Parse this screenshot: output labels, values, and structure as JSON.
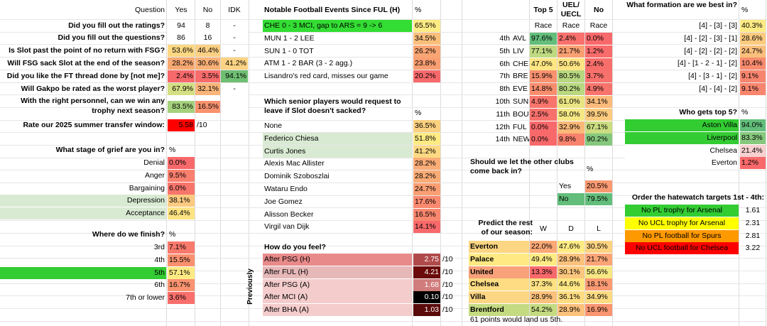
{
  "survey": {
    "header": {
      "question": "Question",
      "yes": "Yes",
      "no": "No",
      "idk": "IDK"
    },
    "rows": [
      {
        "q": "Did you fill out the ratings?",
        "yes": "94",
        "no": "8",
        "idk": "-",
        "yes_c": "#ffffff",
        "no_c": "#ffffff",
        "idk_c": "#ffffff"
      },
      {
        "q": "Did you fill out the questions?",
        "yes": "86",
        "no": "16",
        "idk": "-",
        "yes_c": "#ffffff",
        "no_c": "#ffffff",
        "idk_c": "#ffffff"
      },
      {
        "q": "Is Slot past the point of no return with FSG?",
        "yes": "53.6%",
        "no": "46.4%",
        "idk": "-",
        "yes_c": "#fdd883",
        "no_c": "#fcd084",
        "idk_c": "#ffffff"
      },
      {
        "q": "Will FSG sack Slot at the end of the season?",
        "yes": "28.2%",
        "no": "30.6%",
        "idk": "41.2%",
        "yes_c": "#f8a872",
        "no_c": "#f9b076",
        "idk_c": "#fdd383"
      },
      {
        "q": "Did you like the FT thread done by [not me]?",
        "yes": "2.4%",
        "no": "3.5%",
        "idk": "94.1%",
        "yes_c": "#f8696b",
        "no_c": "#f86c6b",
        "idk_c": "#6fbf73"
      },
      {
        "q": "Will Gakpo be rated as the worst player?",
        "yes": "67.9%",
        "no": "32.1%",
        "idk": "-",
        "yes_c": "#d3df82",
        "no_c": "#f9b57a",
        "idk_c": "#ffffff"
      },
      {
        "q": "With the right personnel, can we win any trophy next season?",
        "yes": "83.5%",
        "no": "16.5%",
        "idk": "",
        "yes_c": "#a5d17d",
        "no_c": "#f9926e",
        "idk_c": "#ffffff"
      }
    ],
    "transfer": {
      "label": "Rate our 2025 summer transfer window:",
      "value": "5.58",
      "unit": "/10"
    }
  },
  "grief": {
    "title": "What stage of grief are you in?",
    "pct": "%",
    "rows": [
      {
        "label": "Denial",
        "value": "0.0%",
        "c": "#f8696b"
      },
      {
        "label": "Anger",
        "value": "9.5%",
        "c": "#f97f6e"
      },
      {
        "label": "Bargaining",
        "value": "6.0%",
        "c": "#f8756c"
      },
      {
        "label": "Depression",
        "value": "38.1%",
        "c": "#fcca81"
      },
      {
        "label": "Acceptance",
        "value": "46.4%",
        "c": "#fee383"
      }
    ]
  },
  "finish": {
    "title": "Where do we finish?",
    "pct": "%",
    "rows": [
      {
        "label": "3rd",
        "value": "7.1%",
        "c": "#f8796d"
      },
      {
        "label": "4th",
        "value": "15.5%",
        "c": "#f9906f"
      },
      {
        "label": "5th",
        "value": "57.1%",
        "c": "#ffeb84"
      },
      {
        "label": "6th",
        "value": "16.7%",
        "c": "#f99370"
      },
      {
        "label": "7th or lower",
        "value": "3.6%",
        "c": "#f86f6c"
      }
    ]
  },
  "events": {
    "title": "Notable Football Events Since FUL (H)",
    "pct": "%",
    "rows": [
      {
        "label": "CHE 0 - 3 MCI, gap to ARS = 9 -> 6",
        "value": "65.5%",
        "c": "#ffeb84"
      },
      {
        "label": "MUN 1 - 2 LEE",
        "value": "34.5%",
        "c": "#fbbf7c"
      },
      {
        "label": "SUN 1 - 0 TOT",
        "value": "26.2%",
        "c": "#f9a574"
      },
      {
        "label": "ATM 1 - 2 BAR (3 - 2 agg.)",
        "value": "23.8%",
        "c": "#f99e72"
      },
      {
        "label": "Lisandro's red card, misses our game",
        "value": "20.2%",
        "c": "#f8696b"
      }
    ]
  },
  "senior": {
    "title": "Which senior players would request to leave if Slot doesn't sacked?",
    "pct": "%",
    "rows": [
      {
        "label": "None",
        "value": "36.5%",
        "c": "#fbd07f"
      },
      {
        "label": "Federico Chiesa",
        "value": "51.8%",
        "c": "#ffeb84"
      },
      {
        "label": "Curtis Jones",
        "value": "41.2%",
        "c": "#fdd983"
      },
      {
        "label": "Alexis Mac Allister",
        "value": "28.2%",
        "c": "#faac77"
      },
      {
        "label": "Dominik Szoboszlai",
        "value": "28.2%",
        "c": "#faac77"
      },
      {
        "label": "Wataru Endo",
        "value": "24.7%",
        "c": "#f99f73"
      },
      {
        "label": "Joe Gomez",
        "value": "17.6%",
        "c": "#f98a6f"
      },
      {
        "label": "Alisson Becker",
        "value": "16.5%",
        "c": "#f8876e"
      },
      {
        "label": "Virgil van Dijk",
        "value": "14.1%",
        "c": "#f8696b"
      }
    ]
  },
  "feel": {
    "title": "How do you feel?",
    "side": "Previously",
    "unit": "/10",
    "rows": [
      {
        "label": "After PSG (H)",
        "value": "2.75",
        "c": "#b04a4a"
      },
      {
        "label": "After FUL (H)",
        "value": "4.21",
        "c": "#6a0a0a"
      },
      {
        "label": "After PSG (A)",
        "value": "1.68",
        "c": "#d07c7c"
      },
      {
        "label": "After MCI (A)",
        "value": "0.10",
        "c": "#000000"
      },
      {
        "label": "After BHA (A)",
        "value": "1.03",
        "c": "#5a0a0a"
      }
    ]
  },
  "race": {
    "headers": {
      "top5": "Top 5",
      "uel": "UEL/ UECL",
      "no": "No",
      "race": "Race"
    },
    "rows": [
      {
        "pos": "4th",
        "team": "AVL",
        "top5": "97.6%",
        "uel": "2.4%",
        "no": "0.0%",
        "c1": "#63be7b",
        "c2": "#f8716c",
        "c3": "#f8696b"
      },
      {
        "pos": "5th",
        "team": "LIV",
        "top5": "77.1%",
        "uel": "21.7%",
        "no": "1.2%",
        "c1": "#c0da81",
        "c2": "#f9a072",
        "c3": "#f86c6b"
      },
      {
        "pos": "6th",
        "team": "CHE",
        "top5": "47.0%",
        "uel": "50.6%",
        "no": "2.4%",
        "c1": "#fee683",
        "c2": "#ffe483",
        "c3": "#f86e6b"
      },
      {
        "pos": "7th",
        "team": "BRE",
        "top5": "15.9%",
        "uel": "80.5%",
        "no": "3.7%",
        "c1": "#f99170",
        "c2": "#b7d780",
        "c3": "#f8716c"
      },
      {
        "pos": "8th",
        "team": "EVE",
        "top5": "14.8%",
        "uel": "80.2%",
        "no": "4.9%",
        "c1": "#f98e6f",
        "c2": "#b9d880",
        "c3": "#f8746c"
      },
      {
        "pos": "10th",
        "team": "SUN",
        "top5": "4.9%",
        "uel": "61.0%",
        "no": "34.1%",
        "c1": "#f8756c",
        "c2": "#eae583",
        "c3": "#fbbb7b"
      },
      {
        "pos": "11th",
        "team": "BOU",
        "top5": "2.5%",
        "uel": "58.0%",
        "no": "39.5%",
        "c1": "#f8706c",
        "c2": "#f5e884",
        "c3": "#fccb7f"
      },
      {
        "pos": "12th",
        "team": "FUL",
        "top5": "0.0%",
        "uel": "32.9%",
        "no": "67.1%",
        "c1": "#f8696b",
        "c2": "#fbb979",
        "c3": "#cbdc81"
      },
      {
        "pos": "14th",
        "team": "NEW",
        "top5": "0.0%",
        "uel": "9.8%",
        "no": "90.2%",
        "c1": "#f8696b",
        "c2": "#f9826e",
        "c3": "#85c87d"
      }
    ]
  },
  "comeback": {
    "title": "Should we let the other clubs come back in?",
    "pct": "%",
    "rows": [
      {
        "label": "Yes",
        "value": "20.5%",
        "c": "#f99a72",
        "lc": "#ffffff"
      },
      {
        "label": "No",
        "value": "79.5%",
        "c": "#63be7b",
        "lc": "#63be7b"
      }
    ]
  },
  "predict": {
    "title": "Predict the rest of our season:",
    "w": "W",
    "d": "D",
    "l": "L",
    "rows": [
      {
        "team": "Everton",
        "w": "22.0%",
        "d": "47.6%",
        "l": "30.5%",
        "tc": "#fdd683",
        "c1": "#fca977",
        "c2": "#ffeb84",
        "c3": "#fdd382"
      },
      {
        "team": "Palace",
        "w": "49.4%",
        "d": "28.9%",
        "l": "21.7%",
        "tc": "#fee983",
        "c1": "#ffeb84",
        "c2": "#fcc27d",
        "c3": "#fba577"
      },
      {
        "team": "United",
        "w": "13.3%",
        "d": "30.1%",
        "l": "56.6%",
        "tc": "#f8a17a",
        "c1": "#f8696b",
        "c2": "#fcc67e",
        "c3": "#f7e884"
      },
      {
        "team": "Chelsea",
        "w": "37.3%",
        "d": "44.6%",
        "l": "18.1%",
        "tc": "#fddc83",
        "c1": "#fde183",
        "c2": "#fee783",
        "c3": "#fa9a73"
      },
      {
        "team": "Villa",
        "w": "28.9%",
        "d": "36.1%",
        "l": "34.9%",
        "tc": "#fdd683",
        "c1": "#fcc27d",
        "c2": "#fddc82",
        "c3": "#fddb82"
      },
      {
        "team": "Brentford",
        "w": "54.2%",
        "d": "28.9%",
        "l": "16.9%",
        "tc": "#c5db82",
        "c1": "#c5db82",
        "c2": "#fcc27d",
        "c3": "#f99570"
      }
    ],
    "note": "61 points would land us 5th."
  },
  "formation": {
    "title": "What formation are we best in?",
    "pct": "%",
    "rows": [
      {
        "label": "[4] - [3] - [3]",
        "value": "40.3%",
        "c": "#ffeb84"
      },
      {
        "label": "[4] - [2] - [3] - [1]",
        "value": "28.6%",
        "c": "#fccb7f"
      },
      {
        "label": "[4] - [2] - [2] - [2]",
        "value": "24.7%",
        "c": "#fbbf7c"
      },
      {
        "label": "[4] - [1 - 2 - 1] - [2]",
        "value": "10.4%",
        "c": "#f98b6f"
      },
      {
        "label": "[4] - [3 - 1] - [2]",
        "value": "9.1%",
        "c": "#f8856e"
      },
      {
        "label": "[4] - [4] - [2]",
        "value": "9.1%",
        "c": "#f8856e"
      }
    ]
  },
  "top5": {
    "title": "Who gets top 5?",
    "pct": "%",
    "rows": [
      {
        "label": "Aston Villa",
        "value": "94.0%",
        "c": "#63be7b",
        "lc": "#33cc33"
      },
      {
        "label": "Liverpool",
        "value": "83.3%",
        "c": "#86c87d",
        "lc": "#33cc33"
      },
      {
        "label": "Chelsea",
        "value": "21.4%",
        "c": "#f8d0d0",
        "lc": "#ffffff"
      },
      {
        "label": "Everton",
        "value": "1.2%",
        "c": "#f8696b",
        "lc": "#ffffff"
      }
    ]
  },
  "hatewatch": {
    "title": "Order the hatewatch targets 1st - 4th:",
    "rows": [
      {
        "label": "No PL trophy for Arsenal",
        "value": "1.61",
        "lc": "#33cc33"
      },
      {
        "label": "No UCL trophy for Arsenal",
        "value": "2.31",
        "lc": "#ffff00"
      },
      {
        "label": "No PL football for Spurs",
        "value": "2.81",
        "lc": "#ff9900"
      },
      {
        "label": "No UCL football for Chelsea",
        "value": "3.22",
        "lc": "#ff0000"
      }
    ]
  }
}
